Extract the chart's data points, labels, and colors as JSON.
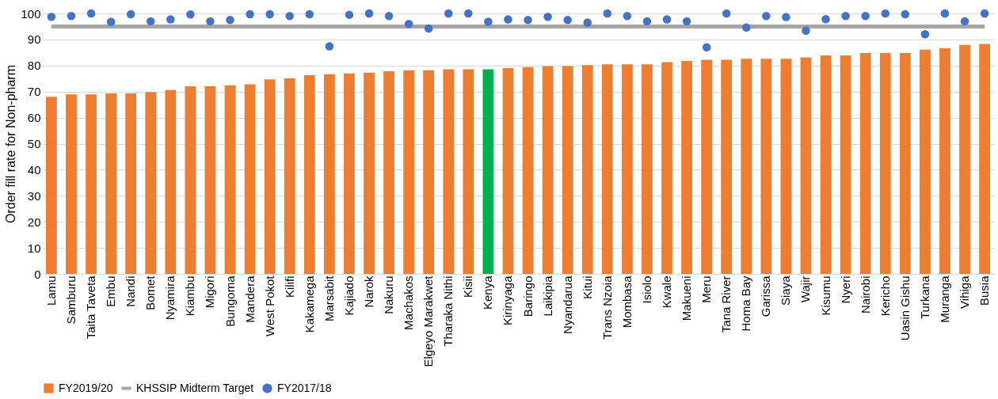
{
  "chart_data": {
    "type": "bar",
    "ylabel": "Order fill rate for Non-pharm",
    "categories": [
      "Lamu",
      "Samburu",
      "Taita Taveta",
      "Embu",
      "Nandi",
      "Bomet",
      "Nyamira",
      "Kiambu",
      "Migori",
      "Bungoma",
      "Mandera",
      "West Pokot",
      "Kilifi",
      "Kakamega",
      "Marsabit",
      "Kajiado",
      "Narok",
      "Nakuru",
      "Machakos",
      "Elgeyo Marakwet",
      "Tharaka Nithi",
      "Kisii",
      "Kenya",
      "Kirinyaga",
      "Baringo",
      "Laikipia",
      "Nyandarua",
      "Kitui",
      "Trans Nzoia",
      "Mombasa",
      "Isiolo",
      "Kwale",
      "Makueni",
      "Meru",
      "Tana River",
      "Homa Bay",
      "Garissa",
      "Siaya",
      "Wajir",
      "Kisumu",
      "Nyeri",
      "Nairobi",
      "Kericho",
      "Uasin Gishu",
      "Turkana",
      "Muranga",
      "Vihiga",
      "Busia"
    ],
    "series": [
      {
        "name": "FY2019/20",
        "color": "#ed7d31",
        "colors": [
          "#ed7d31",
          "#ed7d31",
          "#ed7d31",
          "#ed7d31",
          "#ed7d31",
          "#ed7d31",
          "#ed7d31",
          "#ed7d31",
          "#ed7d31",
          "#ed7d31",
          "#ed7d31",
          "#ed7d31",
          "#ed7d31",
          "#ed7d31",
          "#ed7d31",
          "#ed7d31",
          "#ed7d31",
          "#ed7d31",
          "#ed7d31",
          "#ed7d31",
          "#ed7d31",
          "#ed7d31",
          "#00b050",
          "#ed7d31",
          "#ed7d31",
          "#ed7d31",
          "#ed7d31",
          "#ed7d31",
          "#ed7d31",
          "#ed7d31",
          "#ed7d31",
          "#ed7d31",
          "#ed7d31",
          "#ed7d31",
          "#ed7d31",
          "#ed7d31",
          "#ed7d31",
          "#ed7d31",
          "#ed7d31",
          "#ed7d31",
          "#ed7d31",
          "#ed7d31",
          "#ed7d31",
          "#ed7d31",
          "#ed7d31",
          "#ed7d31",
          "#ed7d31",
          "#ed7d31"
        ],
        "values": [
          68,
          68.9,
          68.9,
          69.3,
          69.3,
          69.8,
          70.6,
          72,
          72,
          72.4,
          72.8,
          74.7,
          75.1,
          76.3,
          76.7,
          77,
          77.3,
          77.8,
          78.2,
          78.2,
          78.6,
          78.6,
          78.6,
          79,
          79.4,
          79.8,
          79.8,
          80.2,
          80.5,
          80.5,
          80.5,
          81.3,
          81.8,
          82.2,
          82.2,
          82.6,
          82.6,
          82.6,
          83.1,
          83.9,
          83.9,
          84.8,
          84.8,
          84.8,
          86.1,
          86.6,
          87.9,
          88.3
        ]
      },
      {
        "name": "KHSSIP Midterm Target",
        "type": "line",
        "color": "#a5a5a5",
        "values": [
          95,
          95,
          95,
          95,
          95,
          95,
          95,
          95,
          95,
          95,
          95,
          95,
          95,
          95,
          95,
          95,
          95,
          95,
          95,
          95,
          95,
          95,
          95,
          95,
          95,
          95,
          95,
          95,
          95,
          95,
          95,
          95,
          95,
          95,
          95,
          95,
          95,
          95,
          95,
          95,
          95,
          95,
          95,
          95,
          95,
          95,
          95,
          95
        ]
      },
      {
        "name": "FY2017/18",
        "type": "scatter",
        "marker": "circle",
        "color": "#4472c4",
        "values": [
          98.7,
          99,
          100,
          96.8,
          99.7,
          97,
          97.7,
          99.6,
          97,
          97.5,
          99.7,
          99.7,
          99,
          99.7,
          87.4,
          99.5,
          100,
          99,
          96,
          94.2,
          100,
          100,
          96.8,
          97.7,
          97.5,
          98.7,
          97.5,
          96.5,
          100,
          99,
          97,
          97.7,
          97,
          87,
          100,
          94.6,
          99,
          98.6,
          93.4,
          97.8,
          99,
          99,
          100,
          99.7,
          92,
          100,
          97,
          100
        ]
      }
    ],
    "ylim": [
      0,
      100
    ],
    "yticks": [
      0,
      10,
      20,
      30,
      40,
      50,
      60,
      70,
      80,
      90,
      100
    ],
    "grid": "y",
    "legend": "bottom",
    "line_style": "solid"
  }
}
